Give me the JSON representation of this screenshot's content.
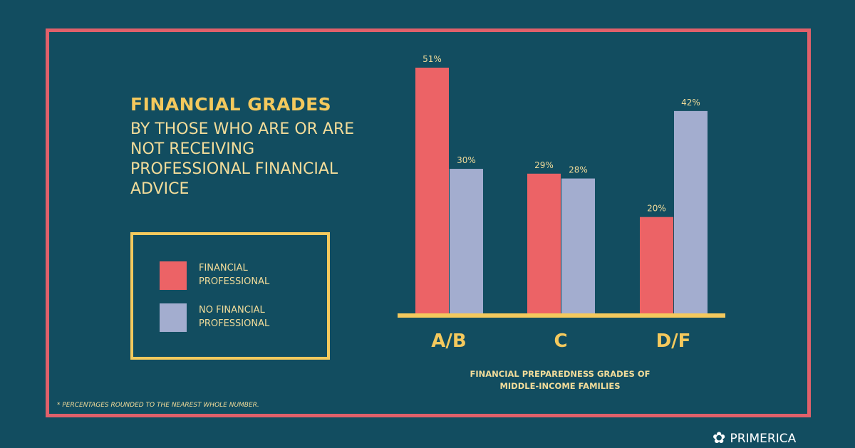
{
  "title": "FINANCIAL GRADES",
  "subtitle": "BY THOSE WHO ARE OR ARE NOT RECEIVING PROFESSIONAL FINANCIAL ADVICE",
  "footnote": "* PERCENTAGES ROUNDED TO THE NEAREST WHOLE NUMBER.",
  "brand": "PRIMERICA",
  "colors": {
    "background": "#124d60",
    "frame": "#e0606a",
    "accent": "#f4c95d",
    "series1": "#ec6366",
    "series2": "#a3adcf"
  },
  "chart_data": {
    "type": "bar",
    "categories": [
      "A/B",
      "C",
      "D/F"
    ],
    "series": [
      {
        "name": "FINANCIAL PROFESSIONAL",
        "values": [
          51,
          29,
          20
        ],
        "labels": [
          "51%",
          "29%",
          "20%"
        ]
      },
      {
        "name": "NO FINANCIAL PROFESSIONAL",
        "values": [
          30,
          28,
          42
        ],
        "labels": [
          "30%",
          "28%",
          "42%"
        ]
      }
    ],
    "xlabel": "FINANCIAL PREPAREDNESS GRADES OF MIDDLE-INCOME FAMILIES",
    "ylim": [
      0,
      51
    ],
    "legend": "left"
  }
}
